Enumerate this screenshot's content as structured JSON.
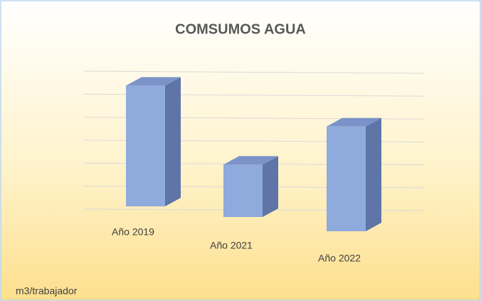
{
  "chart_data": {
    "type": "bar3d",
    "title": "COMSUMOS AGUA",
    "footer": "m3/trabajador",
    "categories": [
      "Año 2019",
      "Año 2021",
      "Año 2022"
    ],
    "values": [
      5.3,
      2.3,
      4.6
    ],
    "color": "#8faadc",
    "ylim": [
      0,
      6
    ],
    "yticks": [
      0,
      1,
      2,
      3,
      4,
      5,
      6
    ],
    "grid": true
  }
}
